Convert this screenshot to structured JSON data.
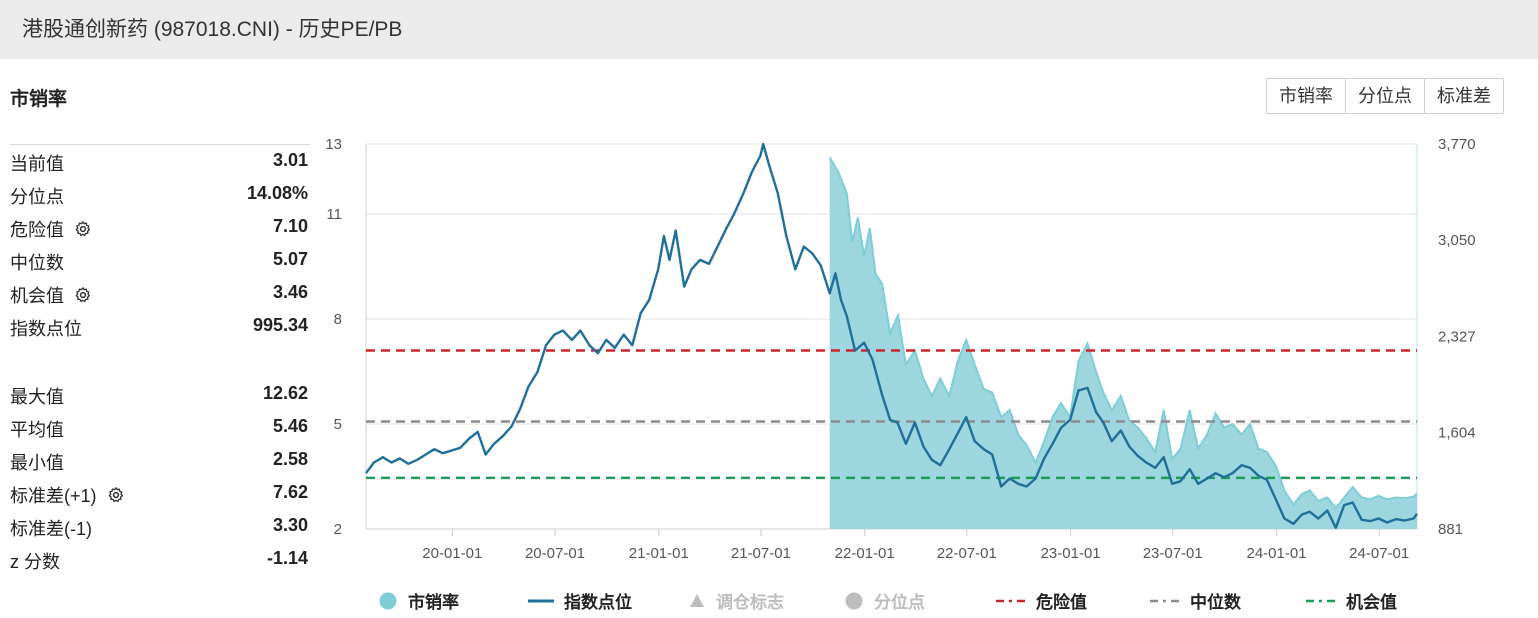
{
  "header": {
    "title": "港股通创新药 (987018.CNI) - 历史PE/PB"
  },
  "section_title": "市销率",
  "buttons": [
    "市销率",
    "分位点",
    "标准差"
  ],
  "stats_top": [
    {
      "label": "当前值",
      "value": "3.01",
      "gear": false
    },
    {
      "label": "分位点",
      "value": "14.08%",
      "gear": false
    },
    {
      "label": "危险值",
      "value": "7.10",
      "gear": true
    },
    {
      "label": "中位数",
      "value": "5.07",
      "gear": false
    },
    {
      "label": "机会值",
      "value": "3.46",
      "gear": true
    },
    {
      "label": "指数点位",
      "value": "995.34",
      "gear": false
    }
  ],
  "stats_bottom": [
    {
      "label": "最大值",
      "value": "12.62",
      "gear": false
    },
    {
      "label": "平均值",
      "value": "5.46",
      "gear": false
    },
    {
      "label": "最小值",
      "value": "2.58",
      "gear": false
    },
    {
      "label": "标准差(+1)",
      "value": "7.62",
      "gear": true
    },
    {
      "label": "标准差(-1)",
      "value": "3.30",
      "gear": false
    },
    {
      "label": "z 分数",
      "value": "-1.14",
      "gear": false
    }
  ],
  "colors": {
    "area_fill": "#9dd6de",
    "area_line": "#7fcdd6",
    "index_line": "#1f6f9a",
    "danger": "#c9262c",
    "median": "#8c8c8c",
    "opportunity": "#1f9a57",
    "grid": "#e3e3e3",
    "axis_text": "#555555",
    "legend_disabled": "#bdbdbd"
  },
  "legend": [
    {
      "label": "市销率",
      "marker": "circle",
      "color": "#7fcdd6",
      "active": true
    },
    {
      "label": "指数点位",
      "marker": "line",
      "color": "#1f6f9a",
      "active": true
    },
    {
      "label": "调仓标志",
      "marker": "triangle",
      "color": "#bdbdbd",
      "active": false
    },
    {
      "label": "分位点",
      "marker": "circle",
      "color": "#bdbdbd",
      "active": false
    },
    {
      "label": "危险值",
      "marker": "dash",
      "color": "#c9262c",
      "active": true
    },
    {
      "label": "中位数",
      "marker": "dash",
      "color": "#8c8c8c",
      "active": true
    },
    {
      "label": "机会值",
      "marker": "dash",
      "color": "#1f9a57",
      "active": true
    }
  ],
  "chart_data": {
    "type": "line",
    "x_range": [
      "2019-08-01",
      "2024-09-06"
    ],
    "x_ticks": [
      "20-01-01",
      "20-07-01",
      "21-01-01",
      "21-07-01",
      "22-01-01",
      "22-07-01",
      "23-01-01",
      "23-07-01",
      "24-01-01",
      "24-07-01"
    ],
    "y_left": {
      "min": 2,
      "max": 13,
      "ticks": [
        "13",
        "11",
        "8",
        "5",
        "2"
      ],
      "tick_values": [
        13,
        11,
        8,
        5,
        2
      ]
    },
    "y_right": {
      "min": 881,
      "max": 3770,
      "ticks": [
        "3,770",
        "3,050",
        "2,327",
        "1,604",
        "881"
      ],
      "tick_values": [
        3770,
        3050,
        2327,
        1604,
        881
      ]
    },
    "reference_lines": [
      {
        "name": "危险值",
        "value": 7.1,
        "style": "dashed",
        "color": "#c9262c"
      },
      {
        "name": "中位数",
        "value": 5.07,
        "style": "dashed",
        "color": "#8c8c8c"
      },
      {
        "name": "机会值",
        "value": 3.46,
        "style": "dashed",
        "color": "#1f9a57"
      }
    ],
    "series": [
      {
        "name": "市销率",
        "axis": "left",
        "kind": "area",
        "points": [
          [
            "2021-10-31",
            12.62
          ],
          [
            "2021-11-15",
            12.2
          ],
          [
            "2021-11-30",
            11.6
          ],
          [
            "2021-12-10",
            10.2
          ],
          [
            "2021-12-20",
            10.9
          ],
          [
            "2021-12-31",
            9.8
          ],
          [
            "2022-01-10",
            10.6
          ],
          [
            "2022-01-20",
            9.3
          ],
          [
            "2022-02-01",
            9.0
          ],
          [
            "2022-02-15",
            7.6
          ],
          [
            "2022-03-01",
            8.1
          ],
          [
            "2022-03-15",
            6.7
          ],
          [
            "2022-03-31",
            7.1
          ],
          [
            "2022-04-15",
            6.3
          ],
          [
            "2022-04-30",
            5.8
          ],
          [
            "2022-05-15",
            6.3
          ],
          [
            "2022-05-31",
            5.8
          ],
          [
            "2022-06-15",
            6.8
          ],
          [
            "2022-06-30",
            7.4
          ],
          [
            "2022-07-15",
            6.7
          ],
          [
            "2022-07-31",
            6.0
          ],
          [
            "2022-08-15",
            5.9
          ],
          [
            "2022-08-31",
            5.2
          ],
          [
            "2022-09-15",
            5.4
          ],
          [
            "2022-09-30",
            4.7
          ],
          [
            "2022-10-15",
            4.4
          ],
          [
            "2022-10-31",
            3.9
          ],
          [
            "2022-11-15",
            4.5
          ],
          [
            "2022-11-30",
            5.2
          ],
          [
            "2022-12-15",
            5.6
          ],
          [
            "2022-12-31",
            5.2
          ],
          [
            "2023-01-15",
            6.8
          ],
          [
            "2023-01-31",
            7.3
          ],
          [
            "2023-02-15",
            6.5
          ],
          [
            "2023-02-28",
            5.9
          ],
          [
            "2023-03-15",
            5.4
          ],
          [
            "2023-03-31",
            5.8
          ],
          [
            "2023-04-15",
            5.1
          ],
          [
            "2023-04-30",
            4.9
          ],
          [
            "2023-05-15",
            4.6
          ],
          [
            "2023-05-31",
            4.2
          ],
          [
            "2023-06-15",
            5.4
          ],
          [
            "2023-06-30",
            4.0
          ],
          [
            "2023-07-15",
            4.3
          ],
          [
            "2023-07-31",
            5.4
          ],
          [
            "2023-08-15",
            4.3
          ],
          [
            "2023-08-31",
            4.7
          ],
          [
            "2023-09-15",
            5.3
          ],
          [
            "2023-09-30",
            4.9
          ],
          [
            "2023-10-15",
            5.0
          ],
          [
            "2023-10-31",
            4.7
          ],
          [
            "2023-11-15",
            5.0
          ],
          [
            "2023-11-30",
            4.3
          ],
          [
            "2023-12-15",
            4.2
          ],
          [
            "2023-12-31",
            3.8
          ],
          [
            "2024-01-15",
            3.1
          ],
          [
            "2024-01-31",
            2.7
          ],
          [
            "2024-02-15",
            3.0
          ],
          [
            "2024-02-29",
            3.1
          ],
          [
            "2024-03-15",
            2.8
          ],
          [
            "2024-03-31",
            2.9
          ],
          [
            "2024-04-15",
            2.6
          ],
          [
            "2024-04-30",
            2.9
          ],
          [
            "2024-05-15",
            3.2
          ],
          [
            "2024-05-31",
            2.9
          ],
          [
            "2024-06-15",
            2.85
          ],
          [
            "2024-06-30",
            2.95
          ],
          [
            "2024-07-15",
            2.85
          ],
          [
            "2024-07-31",
            2.9
          ],
          [
            "2024-08-15",
            2.88
          ],
          [
            "2024-08-31",
            2.92
          ],
          [
            "2024-09-06",
            3.01
          ]
        ]
      },
      {
        "name": "指数点位",
        "axis": "right",
        "kind": "line",
        "points": [
          [
            "2019-08-01",
            1300
          ],
          [
            "2019-08-15",
            1380
          ],
          [
            "2019-08-31",
            1420
          ],
          [
            "2019-09-15",
            1380
          ],
          [
            "2019-09-30",
            1410
          ],
          [
            "2019-10-15",
            1370
          ],
          [
            "2019-10-31",
            1400
          ],
          [
            "2019-11-15",
            1440
          ],
          [
            "2019-11-30",
            1480
          ],
          [
            "2019-12-15",
            1450
          ],
          [
            "2019-12-31",
            1470
          ],
          [
            "2020-01-15",
            1490
          ],
          [
            "2020-01-31",
            1560
          ],
          [
            "2020-02-15",
            1610
          ],
          [
            "2020-02-29",
            1440
          ],
          [
            "2020-03-15",
            1520
          ],
          [
            "2020-03-31",
            1580
          ],
          [
            "2020-04-15",
            1650
          ],
          [
            "2020-04-30",
            1780
          ],
          [
            "2020-05-15",
            1950
          ],
          [
            "2020-05-31",
            2060
          ],
          [
            "2020-06-15",
            2260
          ],
          [
            "2020-06-30",
            2340
          ],
          [
            "2020-07-15",
            2370
          ],
          [
            "2020-07-31",
            2300
          ],
          [
            "2020-08-15",
            2370
          ],
          [
            "2020-08-31",
            2260
          ],
          [
            "2020-09-15",
            2200
          ],
          [
            "2020-09-30",
            2300
          ],
          [
            "2020-10-15",
            2240
          ],
          [
            "2020-10-31",
            2340
          ],
          [
            "2020-11-15",
            2260
          ],
          [
            "2020-11-30",
            2500
          ],
          [
            "2020-12-15",
            2600
          ],
          [
            "2020-12-31",
            2830
          ],
          [
            "2021-01-10",
            3080
          ],
          [
            "2021-01-20",
            2900
          ],
          [
            "2021-01-31",
            3120
          ],
          [
            "2021-02-15",
            2700
          ],
          [
            "2021-02-28",
            2830
          ],
          [
            "2021-03-15",
            2900
          ],
          [
            "2021-03-31",
            2870
          ],
          [
            "2021-04-15",
            3000
          ],
          [
            "2021-04-30",
            3130
          ],
          [
            "2021-05-15",
            3250
          ],
          [
            "2021-05-31",
            3400
          ],
          [
            "2021-06-15",
            3560
          ],
          [
            "2021-06-30",
            3680
          ],
          [
            "2021-07-05",
            3770
          ],
          [
            "2021-07-15",
            3620
          ],
          [
            "2021-07-31",
            3400
          ],
          [
            "2021-08-15",
            3080
          ],
          [
            "2021-08-31",
            2830
          ],
          [
            "2021-09-15",
            3000
          ],
          [
            "2021-09-30",
            2950
          ],
          [
            "2021-10-15",
            2860
          ],
          [
            "2021-10-31",
            2650
          ],
          [
            "2021-11-10",
            2800
          ],
          [
            "2021-11-20",
            2600
          ],
          [
            "2021-11-30",
            2480
          ],
          [
            "2021-12-15",
            2220
          ],
          [
            "2021-12-31",
            2280
          ],
          [
            "2022-01-15",
            2150
          ],
          [
            "2022-01-31",
            1900
          ],
          [
            "2022-02-15",
            1700
          ],
          [
            "2022-02-28",
            1680
          ],
          [
            "2022-03-15",
            1520
          ],
          [
            "2022-03-31",
            1680
          ],
          [
            "2022-04-15",
            1500
          ],
          [
            "2022-04-30",
            1400
          ],
          [
            "2022-05-15",
            1360
          ],
          [
            "2022-05-31",
            1480
          ],
          [
            "2022-06-15",
            1600
          ],
          [
            "2022-06-30",
            1720
          ],
          [
            "2022-07-15",
            1540
          ],
          [
            "2022-07-31",
            1480
          ],
          [
            "2022-08-15",
            1440
          ],
          [
            "2022-08-31",
            1200
          ],
          [
            "2022-09-15",
            1260
          ],
          [
            "2022-09-30",
            1220
          ],
          [
            "2022-10-15",
            1200
          ],
          [
            "2022-10-31",
            1260
          ],
          [
            "2022-11-15",
            1410
          ],
          [
            "2022-11-30",
            1520
          ],
          [
            "2022-12-15",
            1640
          ],
          [
            "2022-12-31",
            1700
          ],
          [
            "2023-01-15",
            1920
          ],
          [
            "2023-01-31",
            1940
          ],
          [
            "2023-02-15",
            1760
          ],
          [
            "2023-02-28",
            1680
          ],
          [
            "2023-03-15",
            1540
          ],
          [
            "2023-03-31",
            1620
          ],
          [
            "2023-04-15",
            1500
          ],
          [
            "2023-04-30",
            1430
          ],
          [
            "2023-05-15",
            1380
          ],
          [
            "2023-05-31",
            1340
          ],
          [
            "2023-06-15",
            1420
          ],
          [
            "2023-06-30",
            1220
          ],
          [
            "2023-07-15",
            1240
          ],
          [
            "2023-07-31",
            1330
          ],
          [
            "2023-08-15",
            1220
          ],
          [
            "2023-08-31",
            1260
          ],
          [
            "2023-09-15",
            1300
          ],
          [
            "2023-09-30",
            1270
          ],
          [
            "2023-10-15",
            1300
          ],
          [
            "2023-10-31",
            1360
          ],
          [
            "2023-11-15",
            1340
          ],
          [
            "2023-11-30",
            1280
          ],
          [
            "2023-12-15",
            1250
          ],
          [
            "2023-12-31",
            1100
          ],
          [
            "2024-01-15",
            960
          ],
          [
            "2024-01-31",
            920
          ],
          [
            "2024-02-15",
            990
          ],
          [
            "2024-02-29",
            1010
          ],
          [
            "2024-03-15",
            960
          ],
          [
            "2024-03-31",
            1020
          ],
          [
            "2024-04-15",
            890
          ],
          [
            "2024-04-30",
            1060
          ],
          [
            "2024-05-15",
            1080
          ],
          [
            "2024-05-31",
            950
          ],
          [
            "2024-06-15",
            940
          ],
          [
            "2024-06-30",
            960
          ],
          [
            "2024-07-15",
            930
          ],
          [
            "2024-07-31",
            955
          ],
          [
            "2024-08-15",
            945
          ],
          [
            "2024-08-31",
            960
          ],
          [
            "2024-09-06",
            995.34
          ]
        ]
      }
    ]
  }
}
